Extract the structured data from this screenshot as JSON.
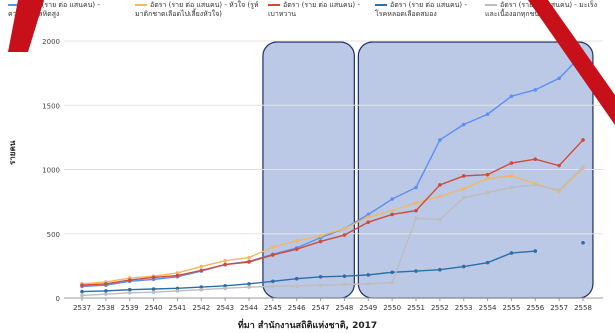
{
  "legend": [
    {
      "label": "อัตรา (ราย ต่อ แสนคน) - ความดันโลหิตสูง",
      "color": "#5b8ff0"
    },
    {
      "label": "อัตรา (ราย ต่อ แสนคน) - หัวใจ (รูห์มาติกชาดเลือดไปเลี้ยงหัวใจ)",
      "color": "#f0b862"
    },
    {
      "label": "อัตรา (ราย ต่อ แสนคน) - เบาหวาน",
      "color": "#d04a3a"
    },
    {
      "label": "อัตรา (ราย ต่อ แสนคน) - โรคหลอดเลือดสมอง",
      "color": "#2a6fa8"
    },
    {
      "label": "อัตรา (ราย ต่อ แสนคน) - มะเร็ง และเนื้องอกทุกชนิด",
      "color": "#bdbdbd"
    }
  ],
  "source": "ที่มา สำนักงานสถิติแห่งชาติ, 2017",
  "chart_data": {
    "type": "line",
    "title": "",
    "xlabel": "",
    "ylabel": "รายคน",
    "ylim": [
      0,
      2000
    ],
    "yticks": [
      0,
      500,
      1000,
      1500,
      2000
    ],
    "grid": true,
    "legend_position": "top",
    "x": [
      "2537",
      "2538",
      "2539",
      "2540",
      "2541",
      "2542",
      "2543",
      "2544",
      "2545",
      "2546",
      "2547",
      "2548",
      "2549",
      "2550",
      "2551",
      "2552",
      "2553",
      "2554",
      "2555",
      "2556",
      "2557",
      "2558"
    ],
    "series": [
      {
        "name": "อัตรา (ราย ต่อ แสนคน) - ความดันโลหิตสูง",
        "color": "#5b8ff0",
        "values": [
          90,
          100,
          130,
          145,
          165,
          210,
          260,
          285,
          340,
          390,
          470,
          540,
          650,
          770,
          860,
          1230,
          1350,
          1430,
          1570,
          1620,
          1710,
          1900
        ]
      },
      {
        "name": "อัตรา (ราย ต่อ แสนคน) - หัวใจ (รูห์มาติกชาดเลือดไปเลี้ยงหัวใจ)",
        "color": "#f0b862",
        "values": [
          110,
          125,
          155,
          170,
          195,
          245,
          290,
          315,
          395,
          445,
          485,
          540,
          630,
          680,
          740,
          790,
          850,
          930,
          950,
          890,
          830,
          1010
        ]
      },
      {
        "name": "อัตรา (ราย ต่อ แสนคน) - เบาหวาน",
        "color": "#d04a3a",
        "values": [
          100,
          110,
          140,
          160,
          175,
          215,
          260,
          280,
          335,
          380,
          440,
          490,
          590,
          650,
          680,
          880,
          950,
          960,
          1050,
          1080,
          1030,
          1230
        ]
      },
      {
        "name": "อัตรา (ราย ต่อ แสนคน) - โรคหลอดเลือดสมอง",
        "color": "#2a6fa8",
        "values": [
          50,
          55,
          65,
          70,
          75,
          85,
          95,
          110,
          130,
          150,
          165,
          170,
          180,
          200,
          210,
          220,
          245,
          275,
          350,
          365,
          null,
          430
        ]
      },
      {
        "name": "อัตรา (ราย ต่อ แสนคน) - มะเร็ง และเนื้องอกทุกชนิด",
        "color": "#bdbdbd",
        "values": [
          20,
          30,
          40,
          45,
          55,
          65,
          75,
          85,
          90,
          95,
          100,
          105,
          110,
          120,
          620,
          610,
          780,
          820,
          860,
          880,
          840,
          1020
        ]
      }
    ],
    "highlight_ranges": [
      [
        "2545",
        "2548"
      ],
      [
        "2549",
        "2558"
      ]
    ]
  }
}
